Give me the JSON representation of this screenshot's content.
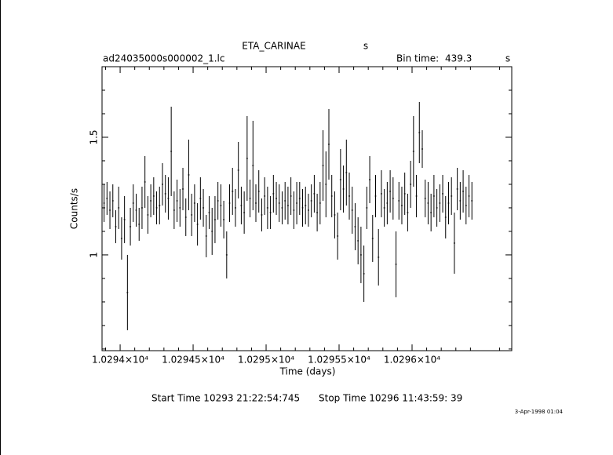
{
  "chart_data": {
    "type": "errorbar",
    "title": "ETA_CARINAE",
    "title_unit": "s",
    "subtitle": "ad24035000s000002_1.lc",
    "bin_time_label": "Bin time:",
    "bin_time": "439.3",
    "bin_time_unit": "s",
    "x_label": "Time (days)",
    "y_label": "Counts/s",
    "start_time": "Start Time 10293 21:22:54:745",
    "stop_time": "Stop Time 10296 11:43:59: 39",
    "date": "3-Apr-1998 01:04",
    "color": "#000000",
    "xlim": [
      10293.876,
      10296.683
    ],
    "ylim": [
      0.593,
      1.8
    ],
    "xticks": [
      {
        "value": 10294,
        "label": "1.0294×10⁴"
      },
      {
        "value": 10294.5,
        "label": "1.02945×10⁴"
      },
      {
        "value": 10295,
        "label": "1.0295×10⁴"
      },
      {
        "value": 10295.5,
        "label": "1.02955×10⁴"
      },
      {
        "value": 10296,
        "label": "1.0296×10⁴"
      }
    ],
    "xminorticks": [
      10293.9,
      10294.1,
      10294.2,
      10294.3,
      10294.4,
      10294.6,
      10294.7,
      10294.8,
      10294.9,
      10295.1,
      10295.2,
      10295.3,
      10295.4,
      10295.6,
      10295.7,
      10295.8,
      10295.9,
      10296.1,
      10296.2,
      10296.3,
      10296.4,
      10296.6
    ],
    "yticks": [
      1,
      1.5
    ],
    "yminorticks": [
      0.6,
      0.7,
      0.8,
      0.9,
      1.1,
      1.2,
      1.3,
      1.4,
      1.6,
      1.7
    ],
    "x": [
      10293.89,
      10293.91,
      10293.93,
      10293.95,
      10293.97,
      10293.99,
      10294.01,
      10294.03,
      10294.05,
      10294.07,
      10294.09,
      10294.11,
      10294.13,
      10294.15,
      10294.17,
      10294.19,
      10294.21,
      10294.23,
      10294.25,
      10294.27,
      10294.29,
      10294.31,
      10294.33,
      10294.35,
      10294.37,
      10294.39,
      10294.41,
      10294.43,
      10294.45,
      10294.47,
      10294.49,
      10294.51,
      10294.53,
      10294.55,
      10294.57,
      10294.59,
      10294.61,
      10294.63,
      10294.65,
      10294.67,
      10294.69,
      10294.71,
      10294.73,
      10294.75,
      10294.77,
      10294.79,
      10294.81,
      10294.83,
      10294.85,
      10294.87,
      10294.89,
      10294.91,
      10294.93,
      10294.95,
      10294.97,
      10294.99,
      10295.01,
      10295.03,
      10295.05,
      10295.07,
      10295.09,
      10295.11,
      10295.13,
      10295.15,
      10295.17,
      10295.19,
      10295.21,
      10295.23,
      10295.25,
      10295.27,
      10295.29,
      10295.31,
      10295.33,
      10295.35,
      10295.37,
      10295.39,
      10295.41,
      10295.43,
      10295.45,
      10295.47,
      10295.49,
      10295.51,
      10295.53,
      10295.55,
      10295.57,
      10295.59,
      10295.61,
      10295.63,
      10295.65,
      10295.67,
      10295.69,
      10295.71,
      10295.73,
      10295.75,
      10295.77,
      10295.79,
      10295.81,
      10295.83,
      10295.85,
      10295.87,
      10295.89,
      10295.91,
      10295.93,
      10295.95,
      10295.97,
      10295.99,
      10296.01,
      10296.03,
      10296.05,
      10296.07,
      10296.09,
      10296.11,
      10296.13,
      10296.15,
      10296.17,
      10296.19,
      10296.21,
      10296.23,
      10296.25,
      10296.27,
      10296.29,
      10296.31,
      10296.33,
      10296.35,
      10296.37,
      10296.39,
      10296.41
    ],
    "values": [
      1.22,
      1.24,
      1.19,
      1.23,
      1.12,
      1.2,
      1.07,
      1.15,
      0.84,
      1.12,
      1.22,
      1.19,
      1.13,
      1.2,
      1.31,
      1.17,
      1.23,
      1.25,
      1.2,
      1.21,
      1.3,
      1.26,
      1.24,
      1.44,
      1.19,
      1.23,
      1.2,
      1.28,
      1.16,
      1.34,
      1.17,
      1.22,
      1.13,
      1.24,
      1.2,
      1.08,
      1.18,
      1.1,
      1.15,
      1.23,
      1.21,
      1.15,
      1.0,
      1.22,
      1.27,
      1.2,
      1.36,
      1.21,
      1.18,
      1.41,
      1.24,
      1.38,
      1.22,
      1.27,
      1.17,
      1.25,
      1.2,
      1.18,
      1.26,
      1.24,
      1.22,
      1.2,
      1.23,
      1.21,
      1.25,
      1.19,
      1.22,
      1.24,
      1.2,
      1.21,
      1.19,
      1.23,
      1.26,
      1.18,
      1.22,
      1.38,
      1.3,
      1.47,
      1.25,
      1.17,
      1.08,
      1.32,
      1.28,
      1.35,
      1.25,
      1.19,
      1.12,
      1.06,
      1.0,
      0.92,
      1.2,
      1.32,
      1.07,
      1.25,
      0.99,
      1.26,
      1.2,
      1.22,
      1.27,
      1.24,
      0.96,
      1.23,
      1.21,
      1.26,
      1.18,
      1.3,
      1.44,
      1.25,
      1.52,
      1.45,
      1.24,
      1.22,
      1.18,
      1.25,
      1.2,
      1.22,
      1.26,
      1.16,
      1.22,
      1.25,
      1.05,
      1.28,
      1.23,
      1.27,
      1.21,
      1.25,
      1.23
    ],
    "errors": [
      0.08,
      0.07,
      0.08,
      0.07,
      0.07,
      0.09,
      0.09,
      0.1,
      0.16,
      0.08,
      0.08,
      0.07,
      0.07,
      0.09,
      0.11,
      0.08,
      0.07,
      0.08,
      0.07,
      0.08,
      0.09,
      0.08,
      0.09,
      0.19,
      0.08,
      0.09,
      0.08,
      0.09,
      0.08,
      0.15,
      0.09,
      0.08,
      0.09,
      0.09,
      0.08,
      0.09,
      0.07,
      0.1,
      0.1,
      0.08,
      0.09,
      0.08,
      0.1,
      0.08,
      0.1,
      0.08,
      0.12,
      0.08,
      0.09,
      0.18,
      0.08,
      0.19,
      0.08,
      0.09,
      0.07,
      0.08,
      0.09,
      0.07,
      0.08,
      0.07,
      0.08,
      0.07,
      0.08,
      0.08,
      0.08,
      0.08,
      0.09,
      0.07,
      0.08,
      0.08,
      0.07,
      0.07,
      0.08,
      0.08,
      0.09,
      0.15,
      0.14,
      0.15,
      0.09,
      0.1,
      0.1,
      0.13,
      0.1,
      0.14,
      0.1,
      0.1,
      0.1,
      0.1,
      0.12,
      0.12,
      0.09,
      0.1,
      0.1,
      0.09,
      0.12,
      0.1,
      0.08,
      0.09,
      0.09,
      0.09,
      0.14,
      0.08,
      0.08,
      0.09,
      0.08,
      0.1,
      0.15,
      0.09,
      0.13,
      0.08,
      0.08,
      0.09,
      0.08,
      0.09,
      0.08,
      0.08,
      0.08,
      0.09,
      0.09,
      0.08,
      0.13,
      0.09,
      0.08,
      0.09,
      0.08,
      0.09,
      0.08
    ]
  }
}
